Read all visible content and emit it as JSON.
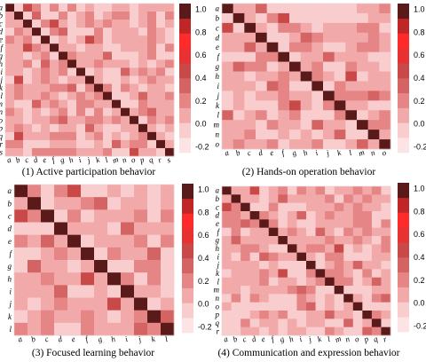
{
  "figure": {
    "color_scale": {
      "min": -0.2,
      "max": 1.0,
      "ticks": [
        "1.0",
        "0.8",
        "0.6",
        "0.4",
        "0.2",
        "0.0",
        "-0.2"
      ],
      "colors": [
        "#fde4e4",
        "#f9cdcd",
        "#f2a9a9",
        "#e58585",
        "#d46363",
        "#c94848",
        "#e83232",
        "#ff2a2a",
        "#c02626",
        "#5a1a1a"
      ]
    }
  },
  "chart_data": [
    {
      "type": "heatmap",
      "caption": "(1) Active participation behavior",
      "labels": [
        "a",
        "b",
        "c",
        "d",
        "e",
        "f",
        "g",
        "h",
        "i",
        "j",
        "k",
        "l",
        "m",
        "n",
        "o",
        "p",
        "q",
        "r",
        "s"
      ],
      "strong_offdiag": [
        [
          0,
          2,
          0.42
        ],
        [
          1,
          3,
          0.35
        ],
        [
          2,
          5,
          0.48
        ],
        [
          3,
          6,
          0.3
        ],
        [
          4,
          9,
          0.4
        ],
        [
          5,
          2,
          0.45
        ],
        [
          6,
          11,
          0.33
        ],
        [
          7,
          4,
          0.38
        ],
        [
          8,
          13,
          0.36
        ],
        [
          9,
          1,
          0.4
        ],
        [
          10,
          7,
          0.35
        ],
        [
          11,
          15,
          0.32
        ],
        [
          12,
          3,
          0.3
        ],
        [
          13,
          16,
          0.34
        ],
        [
          14,
          6,
          0.36
        ],
        [
          15,
          9,
          0.3
        ],
        [
          16,
          1,
          0.44
        ],
        [
          17,
          12,
          0.33
        ],
        [
          18,
          14,
          0.4
        ]
      ]
    },
    {
      "type": "heatmap",
      "caption": "(2) Hands-on operation behavior",
      "labels": [
        "a",
        "b",
        "c",
        "d",
        "e",
        "f",
        "g",
        "h",
        "i",
        "j",
        "k",
        "l",
        "m",
        "n",
        "o"
      ],
      "strong_offdiag": [
        [
          0,
          3,
          0.35
        ],
        [
          1,
          5,
          0.4
        ],
        [
          2,
          0,
          0.45
        ],
        [
          3,
          7,
          0.32
        ],
        [
          4,
          2,
          0.38
        ],
        [
          5,
          9,
          0.36
        ],
        [
          6,
          1,
          0.3
        ],
        [
          7,
          11,
          0.4
        ],
        [
          8,
          4,
          0.35
        ],
        [
          9,
          13,
          0.3
        ],
        [
          10,
          6,
          0.42
        ],
        [
          11,
          0,
          0.33
        ],
        [
          12,
          8,
          0.36
        ],
        [
          13,
          10,
          0.3
        ],
        [
          14,
          12,
          0.38
        ]
      ]
    },
    {
      "type": "heatmap",
      "caption": "(3) Focused learning behavior",
      "labels": [
        "a",
        "b",
        "c",
        "d",
        "e",
        "f",
        "g",
        "h",
        "i",
        "j",
        "k",
        "l"
      ],
      "strong_offdiag": [
        [
          0,
          4,
          0.4
        ],
        [
          1,
          6,
          0.35
        ],
        [
          2,
          0,
          0.42
        ],
        [
          3,
          8,
          0.32
        ],
        [
          4,
          2,
          0.38
        ],
        [
          5,
          10,
          0.36
        ],
        [
          6,
          1,
          0.3
        ],
        [
          7,
          5,
          0.4
        ],
        [
          8,
          3,
          0.34
        ],
        [
          9,
          7,
          0.45
        ],
        [
          10,
          11,
          0.3
        ],
        [
          11,
          9,
          0.36
        ]
      ]
    },
    {
      "type": "heatmap",
      "caption": "(4) Communication and expression behavior",
      "labels": [
        "a",
        "b",
        "c",
        "d",
        "e",
        "f",
        "g",
        "h",
        "i",
        "j",
        "k",
        "l",
        "m",
        "n",
        "o",
        "p",
        "q",
        "r"
      ],
      "strong_offdiag": [
        [
          0,
          3,
          0.4
        ],
        [
          1,
          6,
          0.35
        ],
        [
          2,
          0,
          0.42
        ],
        [
          3,
          8,
          0.32
        ],
        [
          4,
          2,
          0.38
        ],
        [
          5,
          10,
          0.36
        ],
        [
          6,
          1,
          0.3
        ],
        [
          7,
          12,
          0.4
        ],
        [
          8,
          4,
          0.35
        ],
        [
          9,
          14,
          0.3
        ],
        [
          10,
          6,
          0.42
        ],
        [
          11,
          16,
          0.33
        ],
        [
          12,
          8,
          0.36
        ],
        [
          13,
          17,
          0.3
        ],
        [
          14,
          9,
          0.38
        ],
        [
          15,
          11,
          0.34
        ],
        [
          16,
          13,
          0.3
        ],
        [
          17,
          15,
          0.36
        ]
      ]
    }
  ]
}
